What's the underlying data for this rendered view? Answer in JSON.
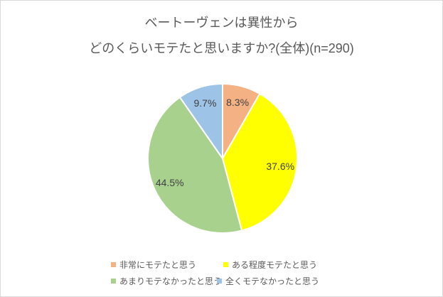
{
  "title": {
    "line1": "ベートーヴェンは異性から",
    "line2": "どのくらいモテたと思いますか?(全体)(n=290)"
  },
  "chart_data": {
    "type": "pie",
    "title": "ベートーヴェンは異性から どのくらいモテたと思いますか?(全体)(n=290)",
    "sample_size_text": "n=290",
    "categories": [
      "非常にモテたと思う",
      "ある程度モテたと思う",
      "あまりモテなかったと思う",
      "全くモテなかったと思う"
    ],
    "values": [
      8.3,
      37.6,
      44.5,
      9.7
    ],
    "labels": [
      "8.3%",
      "37.6%",
      "44.5%",
      "9.7%"
    ],
    "colors": [
      "#F4B183",
      "#FFFF00",
      "#A9D18E",
      "#9DC3E6"
    ],
    "start_angle_deg": 0,
    "direction": "clockwise",
    "separator_color": "#FFFFFF",
    "label_color": "#404040",
    "title_color": "#595959",
    "legend_text_color": "#595959",
    "chart_border_color": "#D9D9D9",
    "legend_position": "bottom",
    "legend_rows": 2
  }
}
